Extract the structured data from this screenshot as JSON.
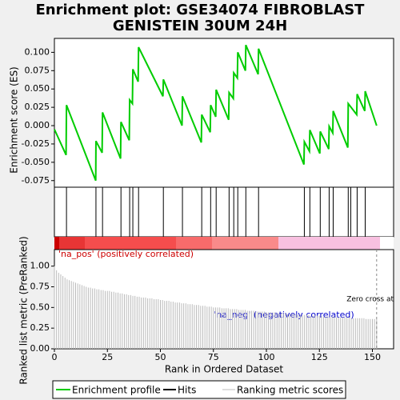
{
  "chart_data": {
    "type": "line",
    "title": [
      "Enrichment plot: GSE34074 FIBROBLAST",
      "GENISTEIN 30UM 24H"
    ],
    "ylabel": "Enrichment score (ES)",
    "xlabel": "Rank in Ordered Dataset",
    "color": "#00cc00",
    "x": [
      0,
      5.5,
      5.7,
      19.5,
      19.6,
      22.5,
      22.7,
      31.2,
      31.4,
      35.3,
      35.5,
      36.8,
      37,
      39.5,
      39.7,
      51.2,
      51.4,
      60.2,
      60.4,
      69.3,
      69.5,
      73.5,
      73.7,
      76.1,
      76.3,
      82.2,
      82.4,
      84.4,
      84.6,
      86.3,
      86.5,
      90.1,
      90.3,
      96.1,
      96.3,
      117.7,
      117.9,
      120.3,
      120.5,
      125.2,
      125.4,
      129.4,
      129.6,
      131.3,
      131.5,
      138.4,
      138.6,
      142.6,
      142.8,
      146.4,
      146.6,
      152
    ],
    "values": [
      -0.005,
      -0.04,
      0.028,
      -0.075,
      -0.021,
      -0.037,
      0.018,
      -0.045,
      0.005,
      -0.02,
      0.035,
      0.03,
      0.077,
      0.06,
      0.107,
      0.04,
      0.063,
      0,
      0.04,
      -0.023,
      0.015,
      -0.009,
      0.028,
      0.012,
      0.049,
      0.008,
      0.045,
      0.037,
      0.072,
      0.065,
      0.1,
      0.075,
      0.11,
      0.07,
      0.105,
      -0.053,
      -0.022,
      -0.035,
      -0.006,
      -0.038,
      -0.008,
      -0.032,
      -0.001,
      -0.01,
      0.02,
      -0.03,
      0.03,
      0.015,
      0.043,
      0.02,
      0.047,
      0
    ],
    "xlim": [
      0,
      160
    ],
    "xticks": [
      0,
      25,
      50,
      75,
      100,
      125,
      150
    ],
    "ylim": [
      -0.084,
      0.119
    ],
    "yticks": [
      {
        "value": 0.1,
        "label": "0.100"
      },
      0.075,
      {
        "value": 0.05,
        "label": "0.050"
      },
      0.025,
      {
        "value": 0,
        "label": "0.000"
      },
      -0.025,
      {
        "value": -0.05,
        "label": "-0.050"
      },
      -0.075
    ],
    "hits": [
      5.7,
      19.6,
      22.7,
      31.4,
      35.5,
      37,
      39.7,
      51.4,
      60.4,
      69.5,
      73.7,
      76.3,
      82.4,
      84.6,
      86.5,
      90.3,
      96.3,
      117.9,
      120.5,
      125.4,
      129.6,
      131.5,
      138.6,
      139.8,
      142.8,
      146.6
    ],
    "metric": {
      "ylabel": "Ranked list metric (PreRanked)",
      "color": "#bbbbbb",
      "ylim": [
        0,
        1.2
      ],
      "yticks": [
        {
          "value": 0,
          "label": "0.00"
        },
        {
          "value": 0.25,
          "label": "0.25"
        },
        {
          "value": 0.5,
          "label": "0.50"
        },
        {
          "value": 0.75,
          "label": "0.75"
        },
        {
          "value": 1,
          "label": "1.00"
        }
      ],
      "values": [
        1.0,
        0.95,
        0.92,
        0.9,
        0.88,
        0.86,
        0.84,
        0.83,
        0.82,
        0.81,
        0.8,
        0.79,
        0.78,
        0.77,
        0.76,
        0.75,
        0.74,
        0.74,
        0.73,
        0.73,
        0.72,
        0.72,
        0.71,
        0.71,
        0.7,
        0.7,
        0.7,
        0.69,
        0.69,
        0.68,
        0.68,
        0.67,
        0.67,
        0.66,
        0.66,
        0.65,
        0.65,
        0.64,
        0.64,
        0.63,
        0.63,
        0.62,
        0.62,
        0.62,
        0.61,
        0.61,
        0.61,
        0.6,
        0.6,
        0.6,
        0.59,
        0.59,
        0.58,
        0.58,
        0.58,
        0.57,
        0.57,
        0.56,
        0.56,
        0.56,
        0.55,
        0.55,
        0.55,
        0.54,
        0.54,
        0.54,
        0.53,
        0.53,
        0.53,
        0.52,
        0.52,
        0.52,
        0.51,
        0.51,
        0.51,
        0.5,
        0.5,
        0.5,
        0.5,
        0.49,
        0.49,
        0.49,
        0.49,
        0.48,
        0.48,
        0.48,
        0.48,
        0.47,
        0.47,
        0.47,
        0.47,
        0.46,
        0.46,
        0.46,
        0.46,
        0.45,
        0.45,
        0.45,
        0.45,
        0.45,
        0.44,
        0.44,
        0.44,
        0.44,
        0.44,
        0.43,
        0.43,
        0.43,
        0.43,
        0.43,
        0.42,
        0.42,
        0.42,
        0.42,
        0.42,
        0.41,
        0.41,
        0.41,
        0.41,
        0.41,
        0.41,
        0.4,
        0.4,
        0.4,
        0.4,
        0.4,
        0.4,
        0.39,
        0.39,
        0.39,
        0.39,
        0.39,
        0.39,
        0.38,
        0.38,
        0.38,
        0.38,
        0.38,
        0.38,
        0.38,
        0.37,
        0.37,
        0.37,
        0.37,
        0.37,
        0.37,
        0.37,
        0.36,
        0.36,
        0.36,
        0.36,
        0.36,
        0.36
      ],
      "zero_cross": 152
    },
    "annotations": [
      "'na_pos' (positively correlated)",
      "'na_neg' (negatively correlated)",
      "Zero cross at"
    ],
    "legend": [
      "Enrichment profile",
      "Hits",
      "Ranking metric scores"
    ]
  }
}
